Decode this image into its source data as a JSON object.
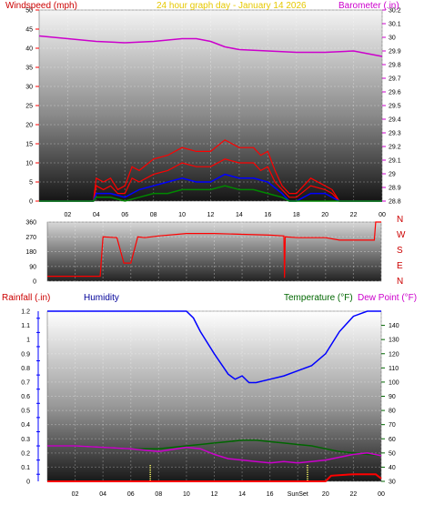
{
  "colors": {
    "red": "#ff0000",
    "darkred": "#cc0000",
    "magenta": "#cc00cc",
    "yellow": "#e6c800",
    "blue": "#0000ff",
    "darkblue": "#000099",
    "green": "#006600",
    "darkgreen": "#008800",
    "sunline": "#ffff66"
  },
  "header": {
    "windspeed": "Windspeed (mph)",
    "graph_title": "24 hour graph day - January 14 2026",
    "barometer": "Barometer (.in)",
    "rainfall": "Rainfall (.in)",
    "humidity": "Humidity",
    "temperature": "Temperature (°F)",
    "dewpoint": "Dew Point (°F)",
    "sunset": "SunSet"
  },
  "chart_data": [
    {
      "type": "line",
      "x_ticks": [
        "02",
        "04",
        "06",
        "08",
        "10",
        "12",
        "14",
        "16",
        "18",
        "20",
        "22",
        "00"
      ],
      "xlim": [
        0,
        24
      ],
      "left_axis": {
        "label": "Windspeed (mph)",
        "ylim": [
          0,
          50
        ],
        "ticks": [
          "0",
          "5",
          "10",
          "15",
          "20",
          "25",
          "30",
          "35",
          "40",
          "45",
          "50"
        ]
      },
      "right_axis": {
        "label": "Barometer (.in)",
        "ylim": [
          28.8,
          30.2
        ],
        "ticks": [
          "28.8",
          "28.9",
          "29",
          "29.1",
          "29.2",
          "29.3",
          "29.4",
          "29.5",
          "29.6",
          "29.7",
          "29.8",
          "29.9",
          "30",
          "30.1",
          "30.2"
        ]
      },
      "series": [
        {
          "name": "Barometer (.in)",
          "axis": "right",
          "x": [
            0,
            2,
            4,
            6,
            8,
            10,
            11,
            12,
            13,
            14,
            16,
            18,
            19,
            20,
            22,
            23,
            24
          ],
          "y": [
            30.01,
            29.99,
            29.97,
            29.96,
            29.97,
            29.99,
            29.99,
            29.97,
            29.93,
            29.91,
            29.9,
            29.89,
            29.89,
            29.89,
            29.9,
            29.88,
            29.86
          ]
        },
        {
          "name": "Windspeed (mph)",
          "axis": "left",
          "x": [
            0,
            2,
            3.8,
            4,
            4.5,
            5,
            5.5,
            6,
            6.5,
            7,
            8,
            9,
            10,
            11,
            12,
            13,
            14,
            15,
            15.5,
            16,
            16.5,
            17,
            17.5,
            18,
            19,
            20,
            20.5,
            21,
            22,
            23,
            24
          ],
          "y": [
            0,
            0,
            0,
            4,
            3,
            4,
            2,
            2,
            6,
            5,
            7,
            8,
            10,
            9,
            9,
            11,
            10,
            10,
            8,
            9,
            5,
            3,
            1,
            1,
            4,
            3,
            2,
            0,
            0,
            0,
            0
          ]
        },
        {
          "name": "Wind Gust (mph)",
          "axis": "left",
          "x": [
            0,
            2,
            3.8,
            4,
            4.5,
            5,
            5.5,
            6,
            6.5,
            7,
            8,
            9,
            10,
            11,
            12,
            13,
            14,
            15,
            15.5,
            16,
            16.5,
            17,
            17.5,
            18,
            19,
            20,
            20.5,
            21,
            22,
            23,
            24
          ],
          "y": [
            0,
            0,
            0,
            6,
            5,
            6,
            3,
            4,
            9,
            8,
            11,
            12,
            14,
            13,
            13,
            16,
            14,
            14,
            12,
            13,
            8,
            4,
            2,
            2,
            6,
            4,
            3,
            0,
            0,
            0,
            0
          ]
        },
        {
          "name": "Average Wind (mph)",
          "axis": "left",
          "x": [
            0,
            2,
            3.8,
            4,
            5,
            6,
            7,
            8,
            9,
            10,
            11,
            12,
            13,
            14,
            15,
            16,
            17,
            17.5,
            18,
            19,
            20,
            21,
            22,
            24
          ],
          "y": [
            0,
            0,
            0,
            2,
            2,
            1,
            3,
            4,
            5,
            6,
            5,
            5,
            7,
            6,
            6,
            5,
            2,
            0,
            0,
            2,
            2,
            0,
            0,
            0
          ]
        },
        {
          "name": "Wind Low (mph)",
          "axis": "left",
          "x": [
            0,
            2,
            3.8,
            4,
            5,
            6,
            7,
            8,
            9,
            10,
            11,
            12,
            13,
            14,
            15,
            16,
            17,
            17.5,
            18,
            24
          ],
          "y": [
            0,
            0,
            0,
            1,
            1,
            0,
            1,
            2,
            2,
            3,
            3,
            3,
            4,
            3,
            3,
            2,
            1,
            0,
            0,
            0
          ]
        }
      ]
    },
    {
      "type": "line",
      "x_ticks": [
        "02",
        "04",
        "06",
        "08",
        "10",
        "12",
        "14",
        "16",
        "18",
        "20",
        "22",
        "00"
      ],
      "xlim": [
        0,
        24
      ],
      "ylim": [
        0,
        360
      ],
      "y_ticks": [
        "0",
        "90",
        "180",
        "270",
        "360"
      ],
      "direction_labels": [
        "N",
        "W",
        "S",
        "E",
        "N"
      ],
      "series": [
        {
          "name": "Wind Direction",
          "x": [
            0,
            1,
            2,
            3,
            3.8,
            4,
            5,
            5.5,
            6,
            6.5,
            7,
            8,
            10,
            12,
            14,
            16,
            17,
            17.05,
            17.1,
            18,
            20,
            21,
            22,
            23,
            23.5,
            23.6,
            24
          ],
          "y": [
            30,
            30,
            30,
            30,
            30,
            270,
            265,
            110,
            110,
            270,
            265,
            275,
            290,
            290,
            285,
            280,
            275,
            20,
            270,
            265,
            265,
            250,
            250,
            250,
            250,
            360,
            360
          ]
        }
      ]
    },
    {
      "type": "line",
      "x_ticks": [
        "02",
        "04",
        "06",
        "08",
        "10",
        "12",
        "14",
        "16",
        "SunSet",
        "20",
        "22",
        "00"
      ],
      "xlim": [
        0,
        24
      ],
      "left_axis": {
        "label": "Rainfall (.in)",
        "ylim": [
          0,
          1.2
        ],
        "ticks": [
          "0",
          "0.05",
          "0.1",
          "0.15",
          "0.2",
          "0.25",
          "0.3",
          "0.35",
          "0.4",
          "0.45",
          "0.5",
          "0.55",
          "0.6",
          "0.65",
          "0.7",
          "0.75",
          "0.8",
          "0.85",
          "0.9",
          "0.95",
          "1",
          "1.05",
          "1.1",
          "1.15",
          "1.2"
        ]
      },
      "right_axis": {
        "label": "Temperature (°F)",
        "ylim": [
          30,
          150
        ],
        "ticks": [
          "30",
          "40",
          "50",
          "60",
          "70",
          "80",
          "90",
          "100",
          "110",
          "120",
          "130",
          "140"
        ]
      },
      "sun_times": [
        7.4,
        18.7
      ],
      "series": [
        {
          "name": "Humidity",
          "axis": "humidity",
          "ylim": [
            0,
            100
          ],
          "x": [
            0,
            2,
            4,
            6,
            8,
            10,
            10.5,
            11,
            12,
            13,
            13.5,
            14,
            14.5,
            15,
            16,
            17,
            18,
            19,
            20,
            21,
            22,
            23,
            24
          ],
          "y": [
            100,
            100,
            100,
            100,
            100,
            100,
            96,
            88,
            75,
            63,
            60,
            62,
            58,
            58,
            60,
            62,
            65,
            68,
            75,
            88,
            97,
            100,
            100
          ]
        },
        {
          "name": "Temperature (°F)",
          "axis": "right",
          "x": [
            0,
            1,
            2,
            4,
            6,
            8,
            10,
            11,
            12,
            13,
            14,
            15,
            16,
            17,
            18,
            19,
            20,
            21,
            22,
            23,
            24
          ],
          "y": [
            55,
            55,
            55,
            54,
            53,
            53,
            55,
            56,
            57,
            58,
            59,
            59,
            58,
            57,
            56,
            55,
            53,
            51,
            50,
            49,
            48
          ]
        },
        {
          "name": "Dew Point (°F)",
          "axis": "right",
          "x": [
            0,
            1,
            2,
            4,
            6,
            8,
            10,
            11,
            12,
            13,
            14,
            15,
            16,
            17,
            18,
            19,
            20,
            21,
            22,
            23,
            24
          ],
          "y": [
            55,
            55,
            55,
            54,
            53,
            51,
            54,
            53,
            49,
            46,
            45,
            44,
            43,
            44,
            43,
            44,
            45,
            47,
            49,
            50,
            48
          ]
        },
        {
          "name": "Rainfall (.in)",
          "axis": "left",
          "x": [
            0,
            20,
            20.4,
            22,
            23,
            23.6,
            24
          ],
          "y": [
            0,
            0,
            0.04,
            0.05,
            0.05,
            0.05,
            0.02
          ]
        }
      ]
    }
  ]
}
